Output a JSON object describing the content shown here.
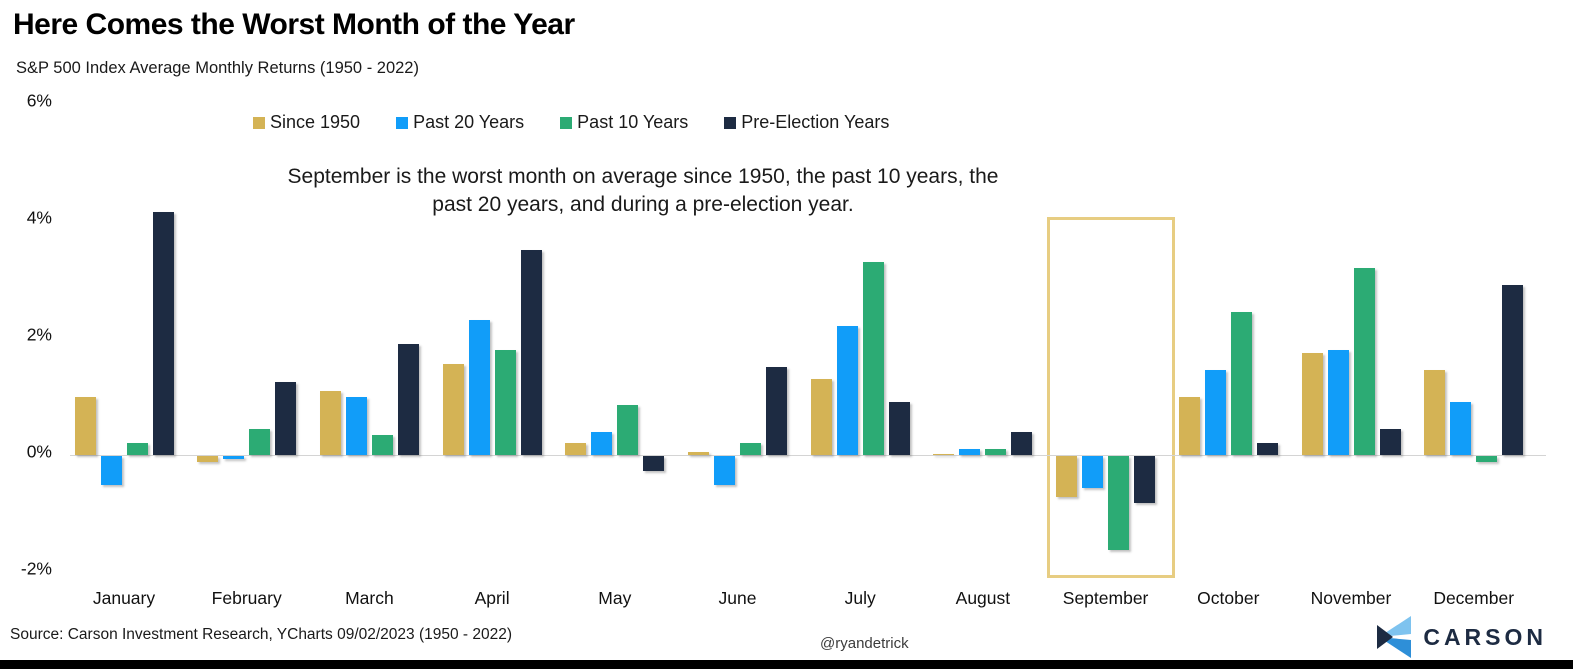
{
  "header": {
    "title": "Here Comes the Worst Month of the Year",
    "subtitle": "S&P 500 Index Average Monthly Returns (1950 - 2022)"
  },
  "annotation": "September is the worst month on average since 1950, the past 10 years, the past 20 years, and during a pre-election year.",
  "footer": {
    "source": "Source: Carson Investment Research, YCharts 09/02/2023 (1950 - 2022)",
    "handle": "@ryandetrick",
    "brand": "CARSON"
  },
  "colors": {
    "since_1950": "#D4B355",
    "past_20_years": "#119DF9",
    "past_10_years": "#2CAB74",
    "pre_election_years": "#1D2B42",
    "highlight_border": "#E7CD82",
    "zero_line": "#D4D4D4",
    "bottom_strip": "#000000",
    "logo_light_blue": "#7EC3EF",
    "logo_mid_blue": "#2E8FD8",
    "logo_navy": "#1D2B42"
  },
  "chart_data": {
    "type": "bar",
    "title": "Here Comes the Worst Month of the Year",
    "subtitle": "S&P 500 Index Average Monthly Returns (1950 - 2022)",
    "categories": [
      "January",
      "February",
      "March",
      "April",
      "May",
      "June",
      "July",
      "August",
      "September",
      "October",
      "November",
      "December"
    ],
    "series": [
      {
        "name": "Since 1950",
        "color": "#D4B355",
        "values": [
          1.0,
          -0.1,
          1.1,
          1.55,
          0.2,
          0.05,
          1.3,
          0.0,
          -0.7,
          1.0,
          1.75,
          1.45
        ]
      },
      {
        "name": "Past 20 Years",
        "color": "#119DF9",
        "values": [
          -0.5,
          -0.05,
          1.0,
          2.3,
          0.4,
          -0.5,
          2.2,
          0.1,
          -0.55,
          1.45,
          1.8,
          0.9
        ]
      },
      {
        "name": "Past 10 Years",
        "color": "#2CAB74",
        "values": [
          0.2,
          0.45,
          0.35,
          1.8,
          0.85,
          0.2,
          3.3,
          0.1,
          -1.6,
          2.45,
          3.2,
          -0.1
        ]
      },
      {
        "name": "Pre-Election Years",
        "color": "#1D2B42",
        "values": [
          4.15,
          1.25,
          1.9,
          3.5,
          -0.25,
          1.5,
          0.9,
          0.4,
          -0.8,
          0.2,
          0.45,
          2.9
        ]
      }
    ],
    "xlabel": "",
    "ylabel": "",
    "ylim": [
      -2.6,
      6.3
    ],
    "yticks": [
      {
        "value": 6,
        "label": "6%"
      },
      {
        "value": 4,
        "label": "4%"
      },
      {
        "value": 2,
        "label": "2%"
      },
      {
        "value": 0,
        "label": "0%"
      },
      {
        "value": -2,
        "label": "-2%"
      }
    ],
    "grid": "zero-line-only",
    "legend_position": "top",
    "highlight": {
      "category": "September",
      "style": "gold outline box"
    }
  }
}
